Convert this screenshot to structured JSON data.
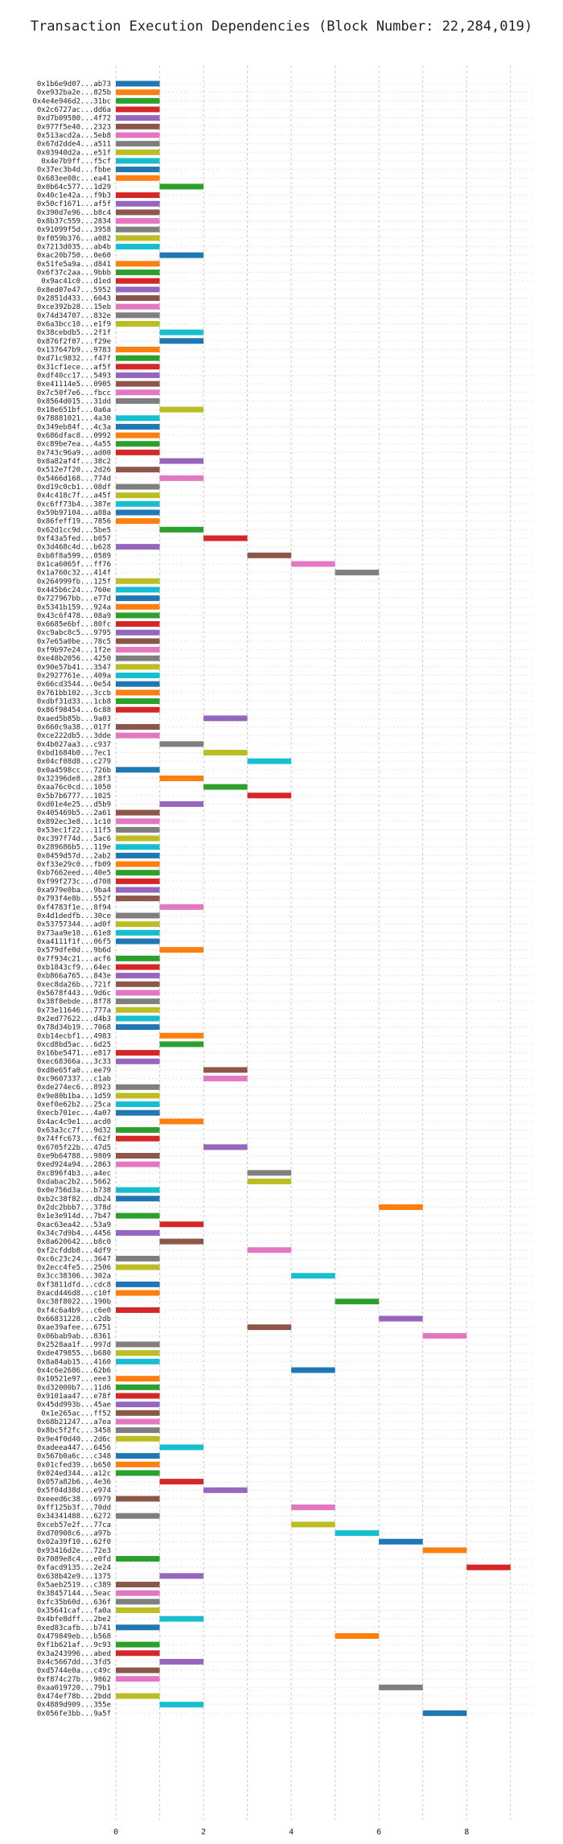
{
  "chart_data": {
    "type": "bar",
    "title": "Transaction Execution Dependencies (Block Number: 22,284,019)",
    "xlabel": "",
    "ylabel": "",
    "xlim": [
      0,
      9.5
    ],
    "xticks": [
      0,
      2,
      4,
      6,
      8
    ],
    "grid": true,
    "legend": "none",
    "palette": [
      "#1f77b4",
      "#ff7f0e",
      "#2ca02c",
      "#d62728",
      "#9467bd",
      "#8c564b",
      "#e377c2",
      "#7f7f7f",
      "#bcbd22",
      "#17becf"
    ],
    "transactions": [
      {
        "label": "0x1b6e9d07...ab73",
        "start": 0
      },
      {
        "label": "0xe932ba2e...825b",
        "start": 0
      },
      {
        "label": "0x4e4e946d2...31bc",
        "start": 0
      },
      {
        "label": "0x2c6727ac...dd6a",
        "start": 0
      },
      {
        "label": "0xd7b09580...4f72",
        "start": 0
      },
      {
        "label": "0x977f5e40...2323",
        "start": 0
      },
      {
        "label": "0x513acd2a...5eb8",
        "start": 0
      },
      {
        "label": "0x67d2dde4...a511",
        "start": 0
      },
      {
        "label": "0x03940d2a...e51f",
        "start": 0
      },
      {
        "label": "0x4e7b9ff...f5cf",
        "start": 0
      },
      {
        "label": "0x37ec3b4d...fbbe",
        "start": 0
      },
      {
        "label": "0x683ee08c...ea41",
        "start": 0
      },
      {
        "label": "0x0b64c577...1d29",
        "start": 1
      },
      {
        "label": "0x40c1e42a...f9b3",
        "start": 0
      },
      {
        "label": "0x50cf1671...af5f",
        "start": 0
      },
      {
        "label": "0x390d7e96...b8c4",
        "start": 0
      },
      {
        "label": "0x8b37c559...2834",
        "start": 0
      },
      {
        "label": "0x91099f5d...3958",
        "start": 0
      },
      {
        "label": "0xf059b376...a082",
        "start": 0
      },
      {
        "label": "0x7213d035...ab4b",
        "start": 0
      },
      {
        "label": "0xac20b750...0e60",
        "start": 1
      },
      {
        "label": "0x51fe5a9a...d841",
        "start": 0
      },
      {
        "label": "0x6f37c2aa...9bbb",
        "start": 0
      },
      {
        "label": "0x9ac41c0...d1ed",
        "start": 0
      },
      {
        "label": "0x8ed07e47...5952",
        "start": 0
      },
      {
        "label": "0x2851d433...6043",
        "start": 0
      },
      {
        "label": "0xce392b28...15eb",
        "start": 0
      },
      {
        "label": "0x74d34707...832e",
        "start": 0
      },
      {
        "label": "0x6a3bcc10...e1f9",
        "start": 0
      },
      {
        "label": "0x38cebdb5...2f1f",
        "start": 1
      },
      {
        "label": "0x876f2f07...f29e",
        "start": 1
      },
      {
        "label": "0x137647b9...9783",
        "start": 0
      },
      {
        "label": "0xd71c9832...f47f",
        "start": 0
      },
      {
        "label": "0x31cf1ece...af5f",
        "start": 0
      },
      {
        "label": "0xdf40cc17...5493",
        "start": 0
      },
      {
        "label": "0xe41114e5...0905",
        "start": 0
      },
      {
        "label": "0x7c50f7e6...fbcc",
        "start": 0
      },
      {
        "label": "0x8564d015...31dd",
        "start": 0
      },
      {
        "label": "0x18e651bf...0a6a",
        "start": 1
      },
      {
        "label": "0x78881021...4a30",
        "start": 0
      },
      {
        "label": "0x349eb84f...4c3a",
        "start": 0
      },
      {
        "label": "0x686dfac8...0992",
        "start": 0
      },
      {
        "label": "0xc89be7ea...4a55",
        "start": 0
      },
      {
        "label": "0x743c96a9...ad00",
        "start": 0
      },
      {
        "label": "0x8a82af4f...38c2",
        "start": 1
      },
      {
        "label": "0x512e7f20...2d26",
        "start": 0
      },
      {
        "label": "0x5466d168...774d",
        "start": 1
      },
      {
        "label": "0xd19c0cb1...08df",
        "start": 0
      },
      {
        "label": "0x4c418c7f...a45f",
        "start": 0
      },
      {
        "label": "0xc6ff73b4...387e",
        "start": 0
      },
      {
        "label": "0x59b97104...a88a",
        "start": 0
      },
      {
        "label": "0x86feff19...7856",
        "start": 0
      },
      {
        "label": "0x62d1cc9d...5be5",
        "start": 1
      },
      {
        "label": "0xf43a5fed...b057",
        "start": 2
      },
      {
        "label": "0x3d468c4d...b628",
        "start": 0
      },
      {
        "label": "0xb8f8a599...0589",
        "start": 3
      },
      {
        "label": "0x1ca6065f...ff76",
        "start": 4
      },
      {
        "label": "0x1a760c32...414f",
        "start": 5
      },
      {
        "label": "0x264999fb...125f",
        "start": 0
      },
      {
        "label": "0x445b6c24...760e",
        "start": 0
      },
      {
        "label": "0x727967bb...e77d",
        "start": 0
      },
      {
        "label": "0x5341b159...924a",
        "start": 0
      },
      {
        "label": "0x43c6f478...08a9",
        "start": 0
      },
      {
        "label": "0x6685e6bf...80fc",
        "start": 0
      },
      {
        "label": "0xc9abc8c5...9795",
        "start": 0
      },
      {
        "label": "0x7e65a0be...78c5",
        "start": 0
      },
      {
        "label": "0xf9b97e24...1f2e",
        "start": 0
      },
      {
        "label": "0xe48b2056...4250",
        "start": 0
      },
      {
        "label": "0x90e57b41...3547",
        "start": 0
      },
      {
        "label": "0x2927761e...409a",
        "start": 0
      },
      {
        "label": "0x66cd3544...0e54",
        "start": 0
      },
      {
        "label": "0x761bb102...3ccb",
        "start": 0
      },
      {
        "label": "0xdbf31d33...1cb8",
        "start": 0
      },
      {
        "label": "0x86f98454...6c88",
        "start": 0
      },
      {
        "label": "0xaed5b85b...9a03",
        "start": 2
      },
      {
        "label": "0x660c9a38...017f",
        "start": 0
      },
      {
        "label": "0xce222db5...3dde",
        "start": 0
      },
      {
        "label": "0x4b027aa3...c937",
        "start": 1
      },
      {
        "label": "0xbd1684b0...7ec1",
        "start": 2
      },
      {
        "label": "0x04cf08d8...c279",
        "start": 3
      },
      {
        "label": "0x0a4598cc...726b",
        "start": 0
      },
      {
        "label": "0x32396de8...28f3",
        "start": 1
      },
      {
        "label": "0xaa76c0cd...1050",
        "start": 2
      },
      {
        "label": "0x5b7b6777...1025",
        "start": 3
      },
      {
        "label": "0xd01e4e25...d5b9",
        "start": 1
      },
      {
        "label": "0x405469b5...2a61",
        "start": 0
      },
      {
        "label": "0x892ec3e8...1c10",
        "start": 0
      },
      {
        "label": "0x53ec1f22...11f5",
        "start": 0
      },
      {
        "label": "0xc397f74d...5ac6",
        "start": 0
      },
      {
        "label": "0x289686b5...119e",
        "start": 0
      },
      {
        "label": "0x0459d57d...2ab2",
        "start": 0
      },
      {
        "label": "0xf33e29c0...fb09",
        "start": 0
      },
      {
        "label": "0xb7662eed...40e5",
        "start": 0
      },
      {
        "label": "0xf99f273c...d708",
        "start": 0
      },
      {
        "label": "0xa979e0ba...9ba4",
        "start": 0
      },
      {
        "label": "0x793f4e8b...552f",
        "start": 0
      },
      {
        "label": "0xf4783f1e...8f94",
        "start": 1
      },
      {
        "label": "0x4d1dedfb...30ce",
        "start": 0
      },
      {
        "label": "0x53757344...ad0f",
        "start": 0
      },
      {
        "label": "0x73aa9e18...61e8",
        "start": 0
      },
      {
        "label": "0xa4111f1f...06f5",
        "start": 0
      },
      {
        "label": "0x579dfe0d...9b6d",
        "start": 1
      },
      {
        "label": "0x7f934c21...acf6",
        "start": 0
      },
      {
        "label": "0xb1843cf9...64ec",
        "start": 0
      },
      {
        "label": "0xb866a765...843e",
        "start": 0
      },
      {
        "label": "0xec8da26b...721f",
        "start": 0
      },
      {
        "label": "0x5678f443...9d6c",
        "start": 0
      },
      {
        "label": "0x38f8ebde...8f78",
        "start": 0
      },
      {
        "label": "0x73e11646...777a",
        "start": 0
      },
      {
        "label": "0x2ed77622...d4b3",
        "start": 0
      },
      {
        "label": "0x78d34b19...7068",
        "start": 0
      },
      {
        "label": "0xb14ecbf1...4983",
        "start": 1
      },
      {
        "label": "0xcd8bd5ac...6d25",
        "start": 1
      },
      {
        "label": "0x16be5471...e817",
        "start": 0
      },
      {
        "label": "0xec68366a...3c33",
        "start": 0
      },
      {
        "label": "0xd8e65fa0...ee79",
        "start": 2
      },
      {
        "label": "0xc9607337...c1ab",
        "start": 2
      },
      {
        "label": "0xde274ec6...8923",
        "start": 0
      },
      {
        "label": "0x9e80b1ba...1d59",
        "start": 0
      },
      {
        "label": "0xef0e62b2...25ca",
        "start": 0
      },
      {
        "label": "0xecb701ec...4a07",
        "start": 0
      },
      {
        "label": "0x4ac4c9e1...acd0",
        "start": 1
      },
      {
        "label": "0x63a3cc7f...9d32",
        "start": 0
      },
      {
        "label": "0x74ffc673...f62f",
        "start": 0
      },
      {
        "label": "0x6705f22b...47d5",
        "start": 2
      },
      {
        "label": "0xe9b64788...9809",
        "start": 0
      },
      {
        "label": "0xed924a94...2863",
        "start": 0
      },
      {
        "label": "0xc896f4b3...a4ec",
        "start": 3
      },
      {
        "label": "0xdabac2b2...5662",
        "start": 3
      },
      {
        "label": "0x0e756d3a...b738",
        "start": 0
      },
      {
        "label": "0xb2c38f82...db24",
        "start": 0
      },
      {
        "label": "0x2dc2bbb7...378d",
        "start": 6
      },
      {
        "label": "0x1e3e914d...7b47",
        "start": 0
      },
      {
        "label": "0xac63ea42...53a9",
        "start": 1
      },
      {
        "label": "0x34c7d9b4...4456",
        "start": 0
      },
      {
        "label": "0x8a620642...b8c0",
        "start": 1
      },
      {
        "label": "0xf2cfddb8...4df9",
        "start": 3
      },
      {
        "label": "0xc6c23c24...3647",
        "start": 0
      },
      {
        "label": "0x2ecc4fe5...2506",
        "start": 0
      },
      {
        "label": "0x3cc38306...302a",
        "start": 4
      },
      {
        "label": "0xf3811dfd...cdc8",
        "start": 0
      },
      {
        "label": "0xacd446d8...c10f",
        "start": 0
      },
      {
        "label": "0xc38f8022...190b",
        "start": 5
      },
      {
        "label": "0xf4c6a4b9...c6e0",
        "start": 0
      },
      {
        "label": "0x66831228...c2db",
        "start": 6
      },
      {
        "label": "0xae39afee...6751",
        "start": 3
      },
      {
        "label": "0x06bab9ab...8361",
        "start": 7
      },
      {
        "label": "0x2528aa1f...997d",
        "start": 0
      },
      {
        "label": "0xde479855...b680",
        "start": 0
      },
      {
        "label": "0x8a84ab15...4160",
        "start": 0
      },
      {
        "label": "0x4c6e2686...62b6",
        "start": 4
      },
      {
        "label": "0x10521e97...eee3",
        "start": 0
      },
      {
        "label": "0xd32000b7...11d6",
        "start": 0
      },
      {
        "label": "0x9101aa47...e78f",
        "start": 0
      },
      {
        "label": "0x45dd993b...45ae",
        "start": 0
      },
      {
        "label": "0x1e265ac...ff52",
        "start": 0
      },
      {
        "label": "0x68b21247...a7ea",
        "start": 0
      },
      {
        "label": "0x8bc5f2fc...3458",
        "start": 0
      },
      {
        "label": "0x9e4f0d40...2d6c",
        "start": 0
      },
      {
        "label": "0xadeea447...6456",
        "start": 1
      },
      {
        "label": "0x567b0a6c...c348",
        "start": 0
      },
      {
        "label": "0x01cfed39...b650",
        "start": 0
      },
      {
        "label": "0x024ed344...a12c",
        "start": 0
      },
      {
        "label": "0x057a82b6...4e36",
        "start": 1
      },
      {
        "label": "0x5f04d38d...e974",
        "start": 2
      },
      {
        "label": "0xeeed6c38...6979",
        "start": 0
      },
      {
        "label": "0xff125b3f...70dd",
        "start": 4
      },
      {
        "label": "0x34341488...6272",
        "start": 0
      },
      {
        "label": "0xceb57e2f...77ca",
        "start": 4
      },
      {
        "label": "0xd70908c6...a97b",
        "start": 5
      },
      {
        "label": "0x02a39f10...62f0",
        "start": 6
      },
      {
        "label": "0x93416d2e...72e3",
        "start": 7
      },
      {
        "label": "0x7089e8c4...e0fd",
        "start": 0
      },
      {
        "label": "0xfacd9135...2e24",
        "start": 8
      },
      {
        "label": "0x638b42e9...1375",
        "start": 1
      },
      {
        "label": "0x5aeb2519...c389",
        "start": 0
      },
      {
        "label": "0x38457144...5eac",
        "start": 0
      },
      {
        "label": "0xfc35b60d...636f",
        "start": 0
      },
      {
        "label": "0x35641caf...fa0a",
        "start": 0
      },
      {
        "label": "0x4bfe8dff...2be2",
        "start": 1
      },
      {
        "label": "0xed83cafb...b741",
        "start": 0
      },
      {
        "label": "0x479849eb...b568",
        "start": 5
      },
      {
        "label": "0xf1b621af...9c93",
        "start": 0
      },
      {
        "label": "0x3a243996...abed",
        "start": 0
      },
      {
        "label": "0x4c5667dd...3fd5",
        "start": 1
      },
      {
        "label": "0xd5744e0a...c49c",
        "start": 0
      },
      {
        "label": "0xf874c27b...9862",
        "start": 0
      },
      {
        "label": "0xaa019720...79b1",
        "start": 6
      },
      {
        "label": "0x474ef78b...2bdd",
        "start": 0
      },
      {
        "label": "0x4889d909...355e",
        "start": 1
      },
      {
        "label": "0x056fe3bb...9a5f",
        "start": 7
      }
    ]
  }
}
